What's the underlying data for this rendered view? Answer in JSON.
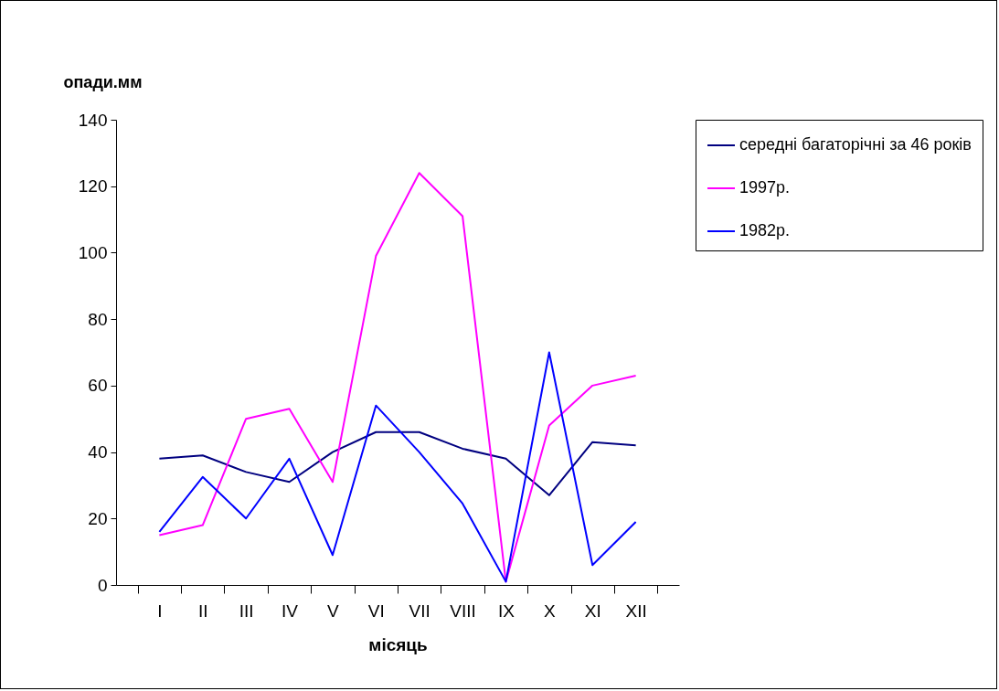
{
  "chart_data": {
    "type": "line",
    "ylabel": "опади.мм",
    "xlabel": "місяць",
    "categories": [
      "I",
      "II",
      "III",
      "IV",
      "V",
      "VI",
      "VII",
      "VIII",
      "IX",
      "X",
      "XI",
      "XII"
    ],
    "series": [
      {
        "name": "середні багаторічні за 46 років",
        "color": "#000080",
        "values": [
          38,
          39,
          34,
          31,
          40,
          46,
          46,
          41,
          38,
          27,
          43,
          42
        ]
      },
      {
        "name": "1997р.",
        "color": "#ff00ff",
        "values": [
          15,
          18,
          50,
          53,
          31,
          99,
          124,
          111,
          1,
          48,
          60,
          63
        ]
      },
      {
        "name": "1982р.",
        "color": "#0000ff",
        "values": [
          16,
          32.5,
          20,
          38,
          9,
          54,
          40,
          24.5,
          1,
          70,
          6,
          19
        ]
      }
    ],
    "ylim": [
      0,
      140
    ],
    "yticks": [
      0,
      20,
      40,
      60,
      80,
      100,
      120,
      140
    ],
    "grid": false,
    "legend": "right",
    "marker": "none",
    "line_style": "solid"
  }
}
